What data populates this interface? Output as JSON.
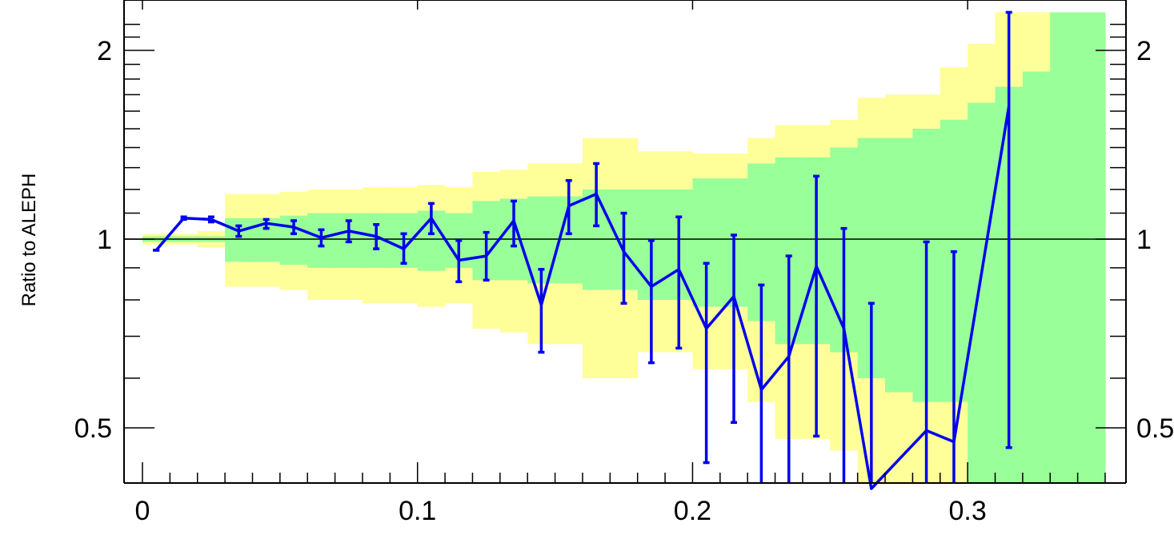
{
  "chart_data": {
    "type": "line",
    "ylabel": "Ratio to ALEPH",
    "xlim": [
      -0.016,
      0.4
    ],
    "ylim": [
      0.4,
      2.3
    ],
    "y_scale": "log",
    "x_frame": [
      0,
      0.35
    ],
    "x_ticks": [
      {
        "value": 0,
        "label": "0"
      },
      {
        "value": 0.1,
        "label": "0.1"
      },
      {
        "value": 0.2,
        "label": "0.2"
      },
      {
        "value": 0.3,
        "label": "0.3"
      }
    ],
    "y_ticks": [
      {
        "value": 0.5,
        "label": "0.5"
      },
      {
        "value": 1,
        "label": "1"
      },
      {
        "value": 2,
        "label": "2"
      }
    ],
    "reference_line": 1,
    "band_colors": {
      "outer": "#ffff99",
      "inner": "#99ff99"
    },
    "line_color": "#0000ee",
    "bands": {
      "edges": [
        0,
        0.01,
        0.02,
        0.03,
        0.04,
        0.05,
        0.06,
        0.07,
        0.08,
        0.09,
        0.1,
        0.11,
        0.12,
        0.13,
        0.14,
        0.15,
        0.16,
        0.17,
        0.18,
        0.19,
        0.2,
        0.21,
        0.22,
        0.23,
        0.24,
        0.25,
        0.26,
        0.27,
        0.28,
        0.29,
        0.3,
        0.31,
        0.32,
        0.33,
        0.34,
        0.35
      ],
      "outer_low": [
        0.98,
        0.98,
        0.97,
        0.84,
        0.84,
        0.83,
        0.8,
        0.8,
        0.79,
        0.79,
        0.78,
        0.79,
        0.72,
        0.71,
        0.68,
        0.68,
        0.6,
        0.6,
        0.66,
        0.66,
        0.62,
        0.62,
        0.55,
        0.48,
        0.48,
        0.46,
        0.4,
        0.38,
        0.37,
        0.37,
        0.37,
        0.37,
        0.37,
        0.37,
        0.37
      ],
      "inner_low": [
        0.99,
        0.99,
        0.99,
        0.92,
        0.92,
        0.91,
        0.9,
        0.9,
        0.9,
        0.9,
        0.89,
        0.9,
        0.86,
        0.86,
        0.85,
        0.85,
        0.83,
        0.83,
        0.8,
        0.8,
        0.78,
        0.78,
        0.74,
        0.68,
        0.68,
        0.66,
        0.6,
        0.57,
        0.55,
        0.55,
        0.37,
        0.37,
        0.37,
        0.37,
        0.37
      ],
      "inner_high": [
        1.01,
        1.01,
        1.01,
        1.08,
        1.08,
        1.09,
        1.1,
        1.1,
        1.1,
        1.1,
        1.11,
        1.1,
        1.15,
        1.16,
        1.17,
        1.17,
        1.2,
        1.2,
        1.2,
        1.2,
        1.25,
        1.25,
        1.32,
        1.35,
        1.35,
        1.4,
        1.45,
        1.45,
        1.5,
        1.55,
        1.65,
        1.75,
        1.85,
        2.3,
        2.3
      ],
      "outer_high": [
        1.02,
        1.02,
        1.03,
        1.18,
        1.18,
        1.19,
        1.2,
        1.2,
        1.21,
        1.21,
        1.22,
        1.21,
        1.28,
        1.29,
        1.32,
        1.32,
        1.45,
        1.45,
        1.38,
        1.38,
        1.37,
        1.37,
        1.45,
        1.52,
        1.52,
        1.55,
        1.68,
        1.7,
        1.7,
        1.88,
        2.05,
        2.3,
        2.3,
        2.3,
        2.3
      ]
    },
    "series": [
      {
        "x": [
          0.005,
          0.015,
          0.025,
          0.035,
          0.045,
          0.055,
          0.065,
          0.075,
          0.085,
          0.095,
          0.105,
          0.115,
          0.125,
          0.135,
          0.145,
          0.155,
          0.165,
          0.175,
          0.185,
          0.195,
          0.205,
          0.215,
          0.225,
          0.235,
          0.245,
          0.255,
          0.265,
          0.285,
          0.295,
          0.315
        ],
        "y": [
          0.96,
          1.08,
          1.075,
          1.03,
          1.06,
          1.045,
          1.005,
          1.03,
          1.01,
          0.965,
          1.08,
          0.925,
          0.94,
          1.07,
          0.785,
          1.13,
          1.18,
          0.955,
          0.84,
          0.895,
          0.72,
          0.81,
          0.575,
          0.65,
          0.905,
          0.72,
          0.4,
          0.495,
          0.475,
          1.63
        ],
        "err_low": [
          0.96,
          1.075,
          1.065,
          1.01,
          1.04,
          1.02,
          0.975,
          0.99,
          0.965,
          0.915,
          1.02,
          0.855,
          0.86,
          0.975,
          0.66,
          1.02,
          1.05,
          0.79,
          0.635,
          0.67,
          0.44,
          0.51,
          0.37,
          0.37,
          0.485,
          0.37,
          0.37,
          0.37,
          0.37,
          0.465
        ],
        "err_high": [
          0.96,
          1.085,
          1.085,
          1.05,
          1.075,
          1.07,
          1.035,
          1.07,
          1.055,
          1.02,
          1.14,
          0.995,
          1.025,
          1.15,
          0.895,
          1.24,
          1.32,
          1.1,
          0.995,
          1.085,
          0.915,
          1.015,
          0.845,
          0.94,
          1.26,
          1.04,
          0.79,
          0.99,
          0.955,
          2.3
        ]
      }
    ]
  }
}
